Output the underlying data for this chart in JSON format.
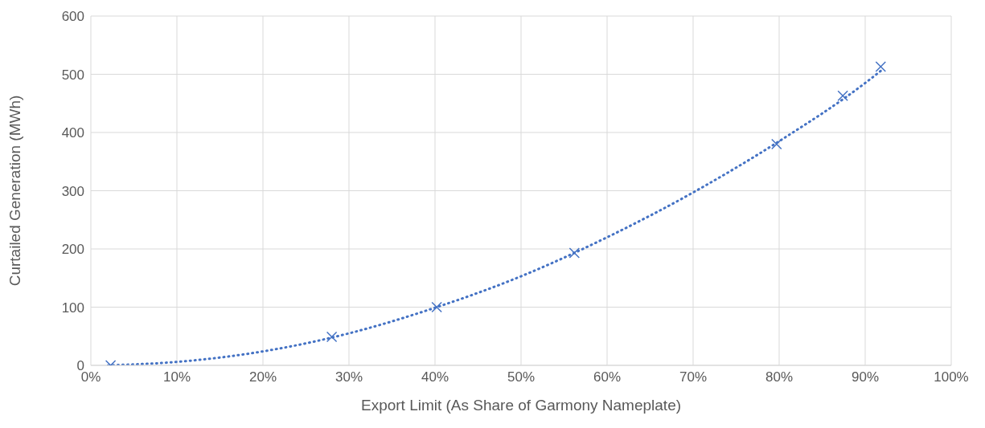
{
  "chart_data": {
    "type": "scatter",
    "xlabel": "Export Limit (As Share of Garmony Nameplate)",
    "ylabel": "Curtailed Generation (MWh)",
    "marker": "cross",
    "grid": true,
    "xlim": [
      0,
      100
    ],
    "xticks": [
      {
        "value": 0,
        "label": "0%"
      },
      {
        "value": 10,
        "label": "10%"
      },
      {
        "value": 20,
        "label": "20%"
      },
      {
        "value": 30,
        "label": "30%"
      },
      {
        "value": 40,
        "label": "40%"
      },
      {
        "value": 50,
        "label": "50%"
      },
      {
        "value": 60,
        "label": "60%"
      },
      {
        "value": 70,
        "label": "70%"
      },
      {
        "value": 80,
        "label": "80%"
      },
      {
        "value": 90,
        "label": "90%"
      },
      {
        "value": 100,
        "label": "100%"
      }
    ],
    "ylim": [
      0,
      600
    ],
    "yticks": [
      0,
      100,
      200,
      300,
      400,
      500,
      600
    ],
    "series": [
      {
        "color": "#4472c4",
        "x": [
          2.3,
          28,
          40.2,
          56.2,
          79.7,
          87.4,
          91.8
        ],
        "values": [
          0,
          49,
          100,
          193,
          380,
          463,
          513
        ]
      },
      {
        "type": "line",
        "color": "#4472c4",
        "line_style": "dotted",
        "marker": "none",
        "x": [
          2,
          10,
          20,
          30,
          40,
          50,
          60,
          70,
          80,
          90,
          92
        ],
        "values": [
          0,
          6,
          24,
          55,
          99,
          153,
          220,
          297,
          385,
          485,
          508
        ]
      }
    ]
  }
}
